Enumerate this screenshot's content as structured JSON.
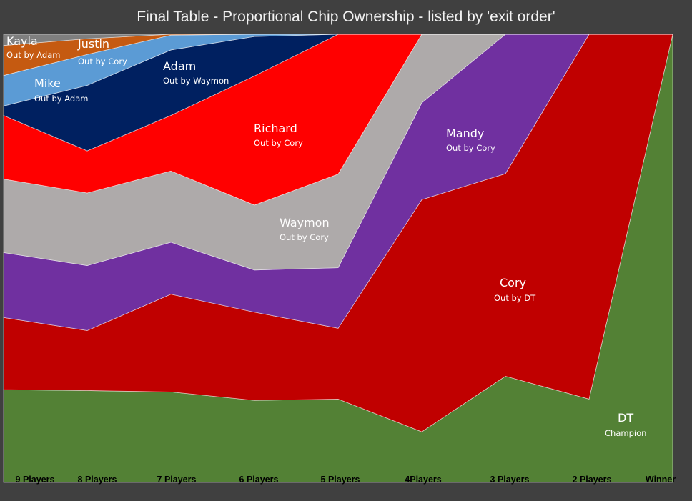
{
  "chart_data": {
    "type": "area",
    "stacking": "percent",
    "title": "Final Table - Proportional Chip Ownership - listed by 'exit order'",
    "xlabel": "",
    "ylabel": "",
    "ylim": [
      0,
      100
    ],
    "grid": false,
    "legend": "none",
    "categories": [
      "9 Players",
      "8 Players",
      "7 Players",
      "6 Players",
      "5 Players",
      "4Players",
      "3 Players",
      "2 Players",
      "Winner"
    ],
    "series": [
      {
        "name": "DT",
        "annotation": "Champion",
        "color": "#538135",
        "values": [
          20.7,
          20.5,
          20.2,
          18.3,
          18.6,
          11.3,
          23.7,
          18.6,
          100
        ]
      },
      {
        "name": "Cory",
        "annotation": "Out by DT",
        "color": "#C00000",
        "values": [
          16.1,
          13.4,
          21.8,
          19.7,
          15.8,
          51.8,
          45.2,
          81.4,
          0
        ]
      },
      {
        "name": "Mandy",
        "annotation": "Out by Cory",
        "color": "#7030A0",
        "values": [
          14.5,
          14.5,
          11.6,
          9.4,
          13.5,
          21.6,
          31.1,
          0,
          0
        ]
      },
      {
        "name": "Waymon",
        "annotation": "Out by Cory",
        "color": "#AEAAAA",
        "values": [
          16.4,
          16.2,
          15.9,
          14.5,
          20.9,
          15.3,
          0,
          0,
          0
        ]
      },
      {
        "name": "Richard",
        "annotation": "Out by Cory",
        "color": "#FF0000",
        "values": [
          14.2,
          9.4,
          12.4,
          28.8,
          31.2,
          0,
          0,
          0,
          0
        ]
      },
      {
        "name": "Adam",
        "annotation": "Out by Waymon",
        "color": "#002060",
        "values": [
          2.1,
          14.6,
          14.6,
          8.8,
          0,
          0,
          0,
          0,
          0
        ]
      },
      {
        "name": "Mike",
        "annotation": "Out by Adam",
        "color": "#5B9BD5",
        "values": [
          6.8,
          6.9,
          3.3,
          0.5,
          0,
          0,
          0,
          0,
          0
        ]
      },
      {
        "name": "Justin",
        "annotation": "Out by Cory",
        "color": "#C55A11",
        "values": [
          6.7,
          3.5,
          0.2,
          0,
          0,
          0,
          0,
          0,
          0
        ]
      },
      {
        "name": "Kayla",
        "annotation": "Out by Adam",
        "color": "#7F7F7F",
        "values": [
          2.5,
          1.0,
          0,
          0,
          0,
          0,
          0,
          0,
          0
        ]
      }
    ]
  }
}
